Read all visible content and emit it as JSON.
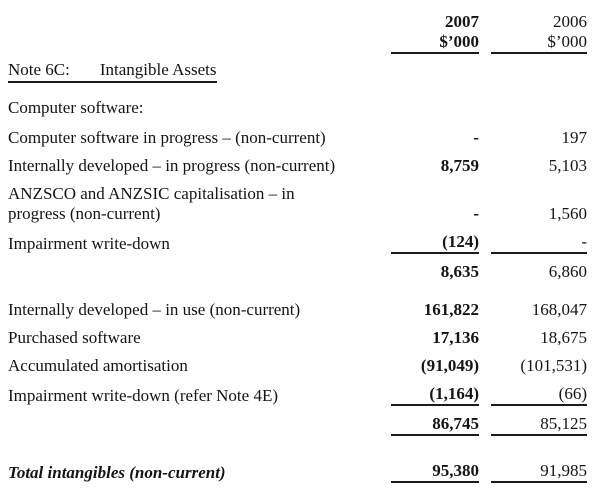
{
  "colors": {
    "background": "#ffffff",
    "text": "#141414",
    "rule_lines": "#1b1b1b"
  },
  "header": {
    "col_2007": {
      "year": "2007",
      "unit": "$’000"
    },
    "col_2006": {
      "year": "2006",
      "unit": "$’000"
    }
  },
  "note": {
    "number": "Note 6C:",
    "title": "Intangible Assets"
  },
  "section_label": "Computer software:",
  "rows": [
    {
      "label": "Computer software in progress – (non-current)",
      "v2007": "-",
      "v2006": "197"
    },
    {
      "label": "Internally developed – in progress (non-current)",
      "v2007": "8,759",
      "v2006": "5,103"
    },
    {
      "label": "ANZSCO and ANZSIC capitalisation – in",
      "label2": "progress (non-current)",
      "v2007": "-",
      "v2006": "1,560"
    },
    {
      "label": "Impairment write-down",
      "v2007": "(124)",
      "v2006": "-",
      "rule_below": true
    },
    {
      "label": "",
      "v2007": "8,635",
      "v2006": "6,860",
      "subtotal": true
    },
    {
      "label": "Internally developed – in use (non-current)",
      "v2007": "161,822",
      "v2006": "168,047",
      "space_before": true
    },
    {
      "label": "Purchased software",
      "v2007": "17,136",
      "v2006": "18,675"
    },
    {
      "label": "Accumulated amortisation",
      "v2007": "(91,049)",
      "v2006": "(101,531)"
    },
    {
      "label": "Impairment write-down (refer Note 4E)",
      "v2007": "(1,164)",
      "v2006": "(66)",
      "rule_below": true
    },
    {
      "label": "",
      "v2007": "86,745",
      "v2006": "85,125",
      "subtotal": true,
      "rule_below": true
    },
    {
      "label": "Total intangibles (non-current)",
      "v2007": "95,380",
      "v2006": "91,985",
      "total": true,
      "rule_below": true,
      "space_before_lg": true
    }
  ]
}
